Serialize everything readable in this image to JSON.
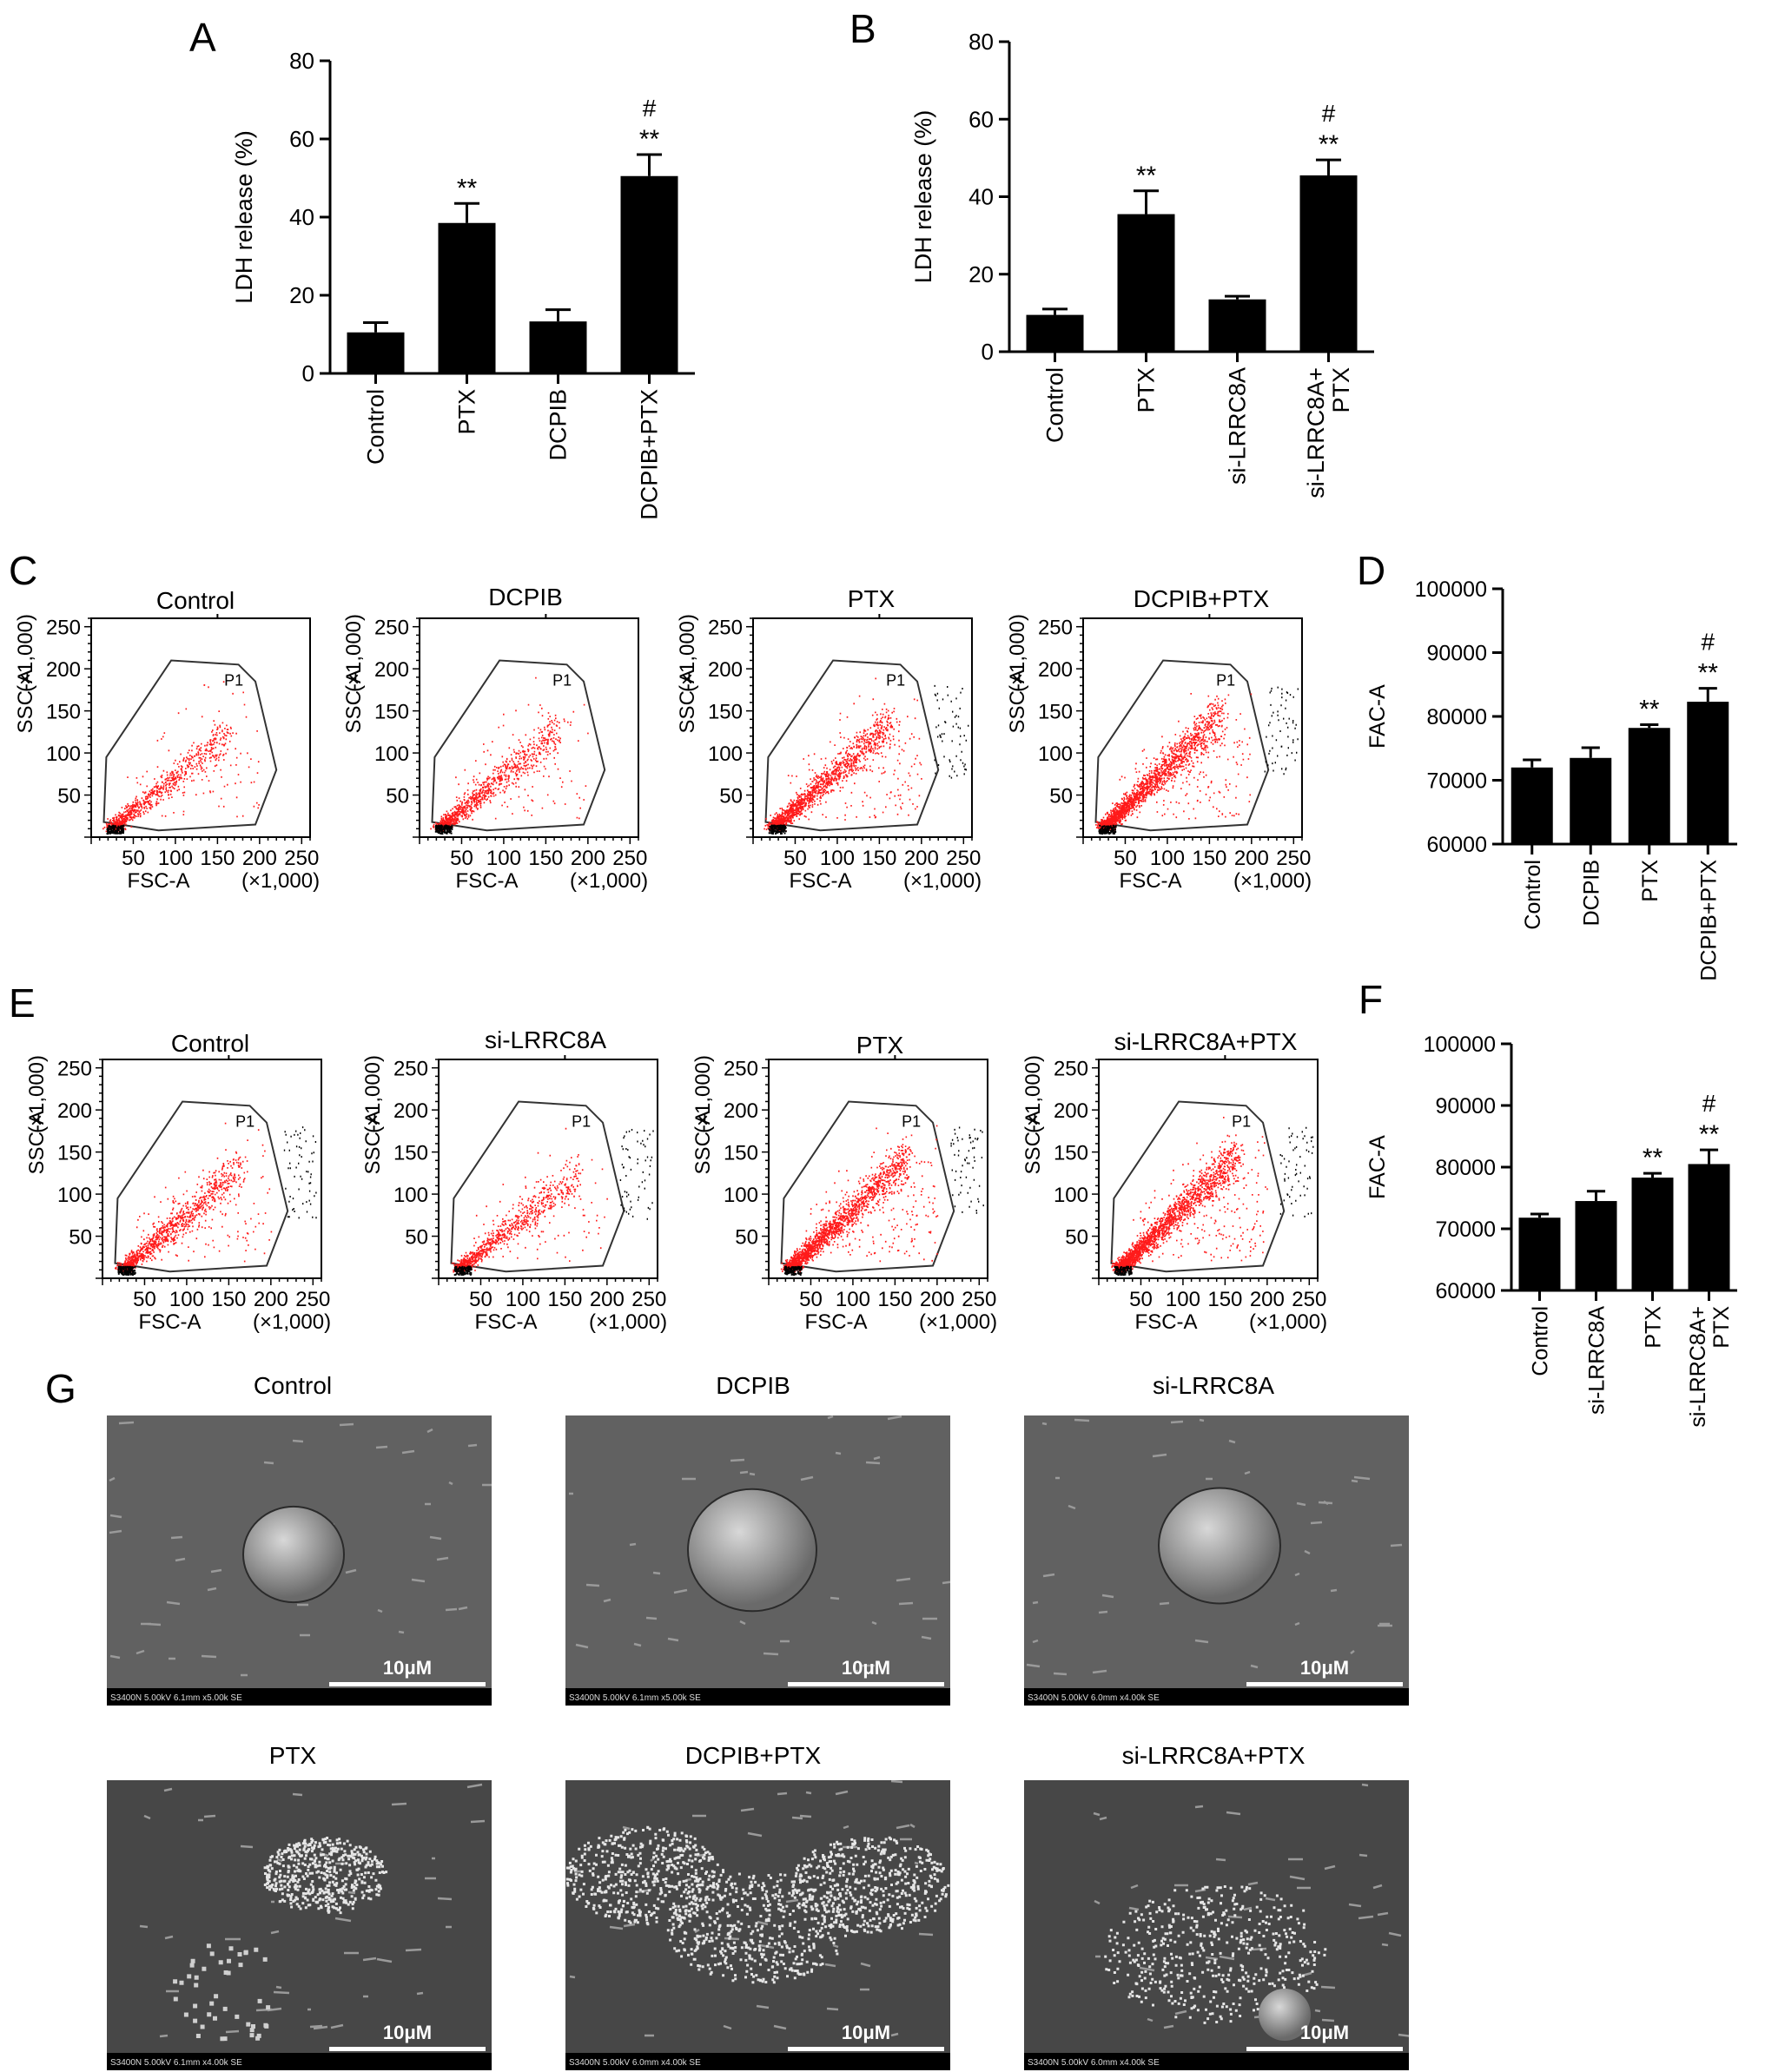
{
  "panel_letters": {
    "A": "A",
    "B": "B",
    "C": "C",
    "D": "D",
    "E": "E",
    "F": "F",
    "G": "G"
  },
  "chart_data": [
    {
      "panel": "A",
      "type": "bar",
      "categories": [
        "Control",
        "PTX",
        "DCPIB",
        "DCPIB+PTX"
      ],
      "values": [
        10.5,
        38.5,
        13.3,
        50.5
      ],
      "errors": [
        2.5,
        5.0,
        3.0,
        5.5
      ],
      "annotations": [
        "",
        "**",
        "",
        "#\n**"
      ],
      "ylabel": "LDH release (%)",
      "ylim": [
        0,
        80
      ],
      "yticks": [
        0,
        20,
        40,
        60,
        80
      ]
    },
    {
      "panel": "B",
      "type": "bar",
      "categories": [
        "Control",
        "PTX",
        "si-LRRC8A",
        "si-LRRC8A+\nPTX"
      ],
      "values": [
        9.5,
        35.5,
        13.5,
        45.5
      ],
      "errors": [
        1.5,
        6.0,
        0.8,
        4.0
      ],
      "annotations": [
        "",
        "**",
        "",
        "#\n**"
      ],
      "ylabel": "LDH release (%)",
      "ylim": [
        0,
        80
      ],
      "yticks": [
        0,
        20,
        40,
        60,
        80
      ]
    },
    {
      "panel": "D",
      "type": "bar",
      "categories": [
        "Control",
        "DCPIB",
        "PTX",
        "DCPIB+PTX"
      ],
      "values": [
        72000,
        73500,
        78200,
        82300
      ],
      "errors": [
        1200,
        1600,
        500,
        2100
      ],
      "annotations": [
        "",
        "",
        "**",
        "#\n**"
      ],
      "ylabel": "FAC-A",
      "ylim": [
        60000,
        100000
      ],
      "yticks": [
        60000,
        70000,
        80000,
        90000,
        100000
      ]
    },
    {
      "panel": "F",
      "type": "bar",
      "categories": [
        "Control",
        "si-LRRC8A",
        "PTX",
        "si-LRRC8A+\nPTX"
      ],
      "values": [
        71800,
        74500,
        78300,
        80500
      ],
      "errors": [
        600,
        1600,
        700,
        2300
      ],
      "annotations": [
        "",
        "",
        "**",
        "#\n**"
      ],
      "ylabel": "FAC-A",
      "ylim": [
        60000,
        100000
      ],
      "yticks": [
        60000,
        70000,
        80000,
        90000,
        100000
      ]
    },
    {
      "panel": "C",
      "type": "scatter",
      "titles": [
        "Control",
        "DCPIB",
        "PTX",
        "DCPIB+PTX"
      ],
      "xlabel": "FSC-A",
      "xunit": "(×1,000)",
      "ylabel": "SSC-A",
      "yunit": "(×1,000)",
      "xticks": [
        50,
        100,
        150,
        200,
        250
      ],
      "yticks": [
        50,
        100,
        150,
        200,
        250
      ],
      "gate": "P1"
    },
    {
      "panel": "E",
      "type": "scatter",
      "titles": [
        "Control",
        "si-LRRC8A",
        "PTX",
        "si-LRRC8A+PTX"
      ],
      "xlabel": "FSC-A",
      "xunit": "(×1,000)",
      "ylabel": "SSC-A",
      "yunit": "(×1,000)",
      "xticks": [
        50,
        100,
        150,
        200,
        250
      ],
      "yticks": [
        50,
        100,
        150,
        200,
        250
      ],
      "gate": "P1"
    }
  ],
  "sem": {
    "titles": [
      "Control",
      "DCPIB",
      "si-LRRC8A",
      "PTX",
      "DCPIB+PTX",
      "si-LRRC8A+PTX"
    ],
    "scale_label": "10μM",
    "info": [
      "S3400N 5.00kV 6.1mm x5.00k SE",
      "S3400N 5.00kV 6.1mm x5.00k SE",
      "S3400N 5.00kV 6.0mm x4.00k SE",
      "S3400N 5.00kV 6.1mm x4.00k SE",
      "S3400N 5.00kV 6.0mm x4.00k SE",
      "S3400N 5.00kV 6.0mm x4.00k SE"
    ]
  }
}
